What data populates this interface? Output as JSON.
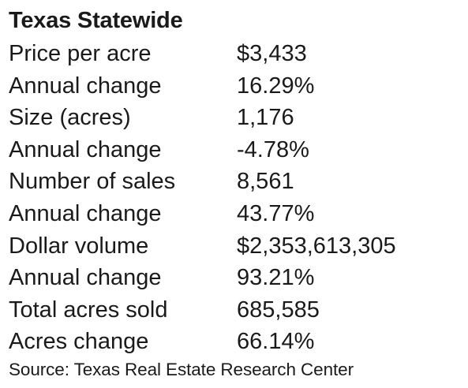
{
  "title": "Texas Statewide",
  "rows": [
    {
      "label": "Price per acre",
      "value": "$3,433"
    },
    {
      "label": "Annual change",
      "value": "16.29%"
    },
    {
      "label": "Size (acres)",
      "value": "1,176"
    },
    {
      "label": "Annual change",
      "value": "-4.78%"
    },
    {
      "label": "Number of sales",
      "value": "8,561"
    },
    {
      "label": "Annual change",
      "value": "43.77%"
    },
    {
      "label": "Dollar volume",
      "value": "$2,353,613,305"
    },
    {
      "label": "Annual change",
      "value": "93.21%"
    },
    {
      "label": "Total acres sold",
      "value": "685,585"
    },
    {
      "label": "Acres change",
      "value": "66.14%"
    }
  ],
  "source": "Source: Texas Real Estate Research Center"
}
